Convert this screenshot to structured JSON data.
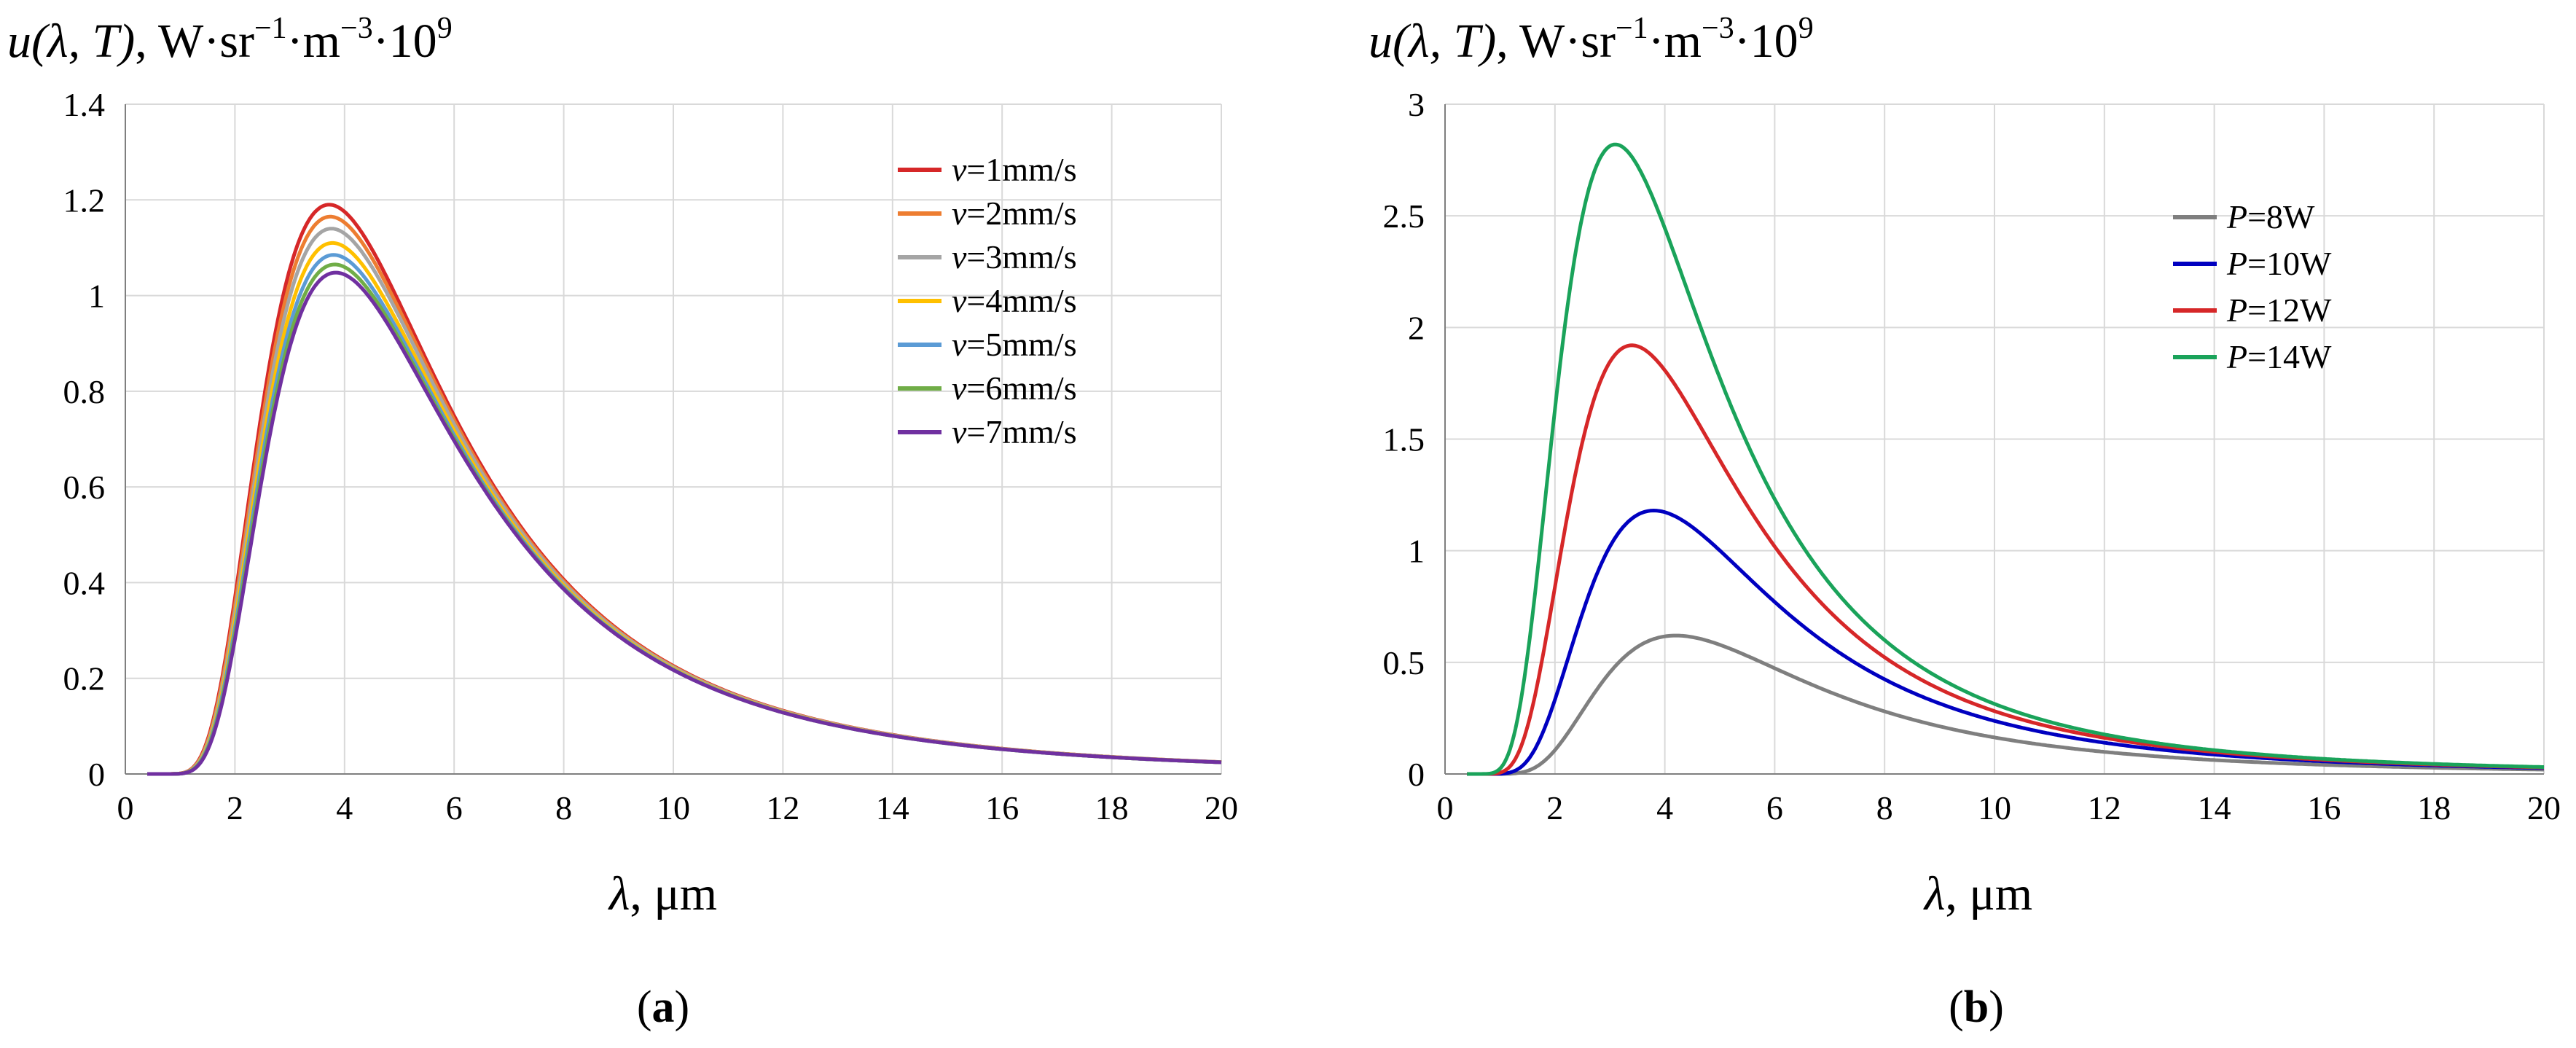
{
  "chart_data": [
    {
      "type": "line",
      "panel_label": "a",
      "ylabel": {
        "var": "u",
        "args": "(λ, T)",
        "units": ", W·sr",
        "e1": "−1",
        "mid": "·m",
        "e2": "−3",
        "tail": "·10",
        "e3": "9"
      },
      "xlabel": {
        "var": "λ",
        "units": ", μm"
      },
      "xlim": [
        0,
        20
      ],
      "ylim": [
        0,
        1.4
      ],
      "xticks": [
        0,
        2,
        4,
        6,
        8,
        10,
        12,
        14,
        16,
        18,
        20
      ],
      "yticks": [
        0,
        0.2,
        0.4,
        0.6,
        0.8,
        1,
        1.2,
        1.4
      ],
      "ytick_labels": [
        "0",
        "0.2",
        "0.4",
        "0.6",
        "0.8",
        "1",
        "1.2",
        "1.4"
      ],
      "x_start": 0.4,
      "legend_position": "top-right",
      "series": [
        {
          "name": "1mm/s",
          "var": "v",
          "eq": "=",
          "value_label": "1mm/s",
          "color": "#d62728",
          "peak_x": 3.72,
          "peak_y": 1.19
        },
        {
          "name": "2mm/s",
          "var": "v",
          "eq": "=",
          "value_label": "2mm/s",
          "color": "#ed7d31",
          "peak_x": 3.74,
          "peak_y": 1.165
        },
        {
          "name": "3mm/s",
          "var": "v",
          "eq": "=",
          "value_label": "3mm/s",
          "color": "#a5a5a5",
          "peak_x": 3.76,
          "peak_y": 1.14
        },
        {
          "name": "4mm/s",
          "var": "v",
          "eq": "=",
          "value_label": "4mm/s",
          "color": "#ffc000",
          "peak_x": 3.78,
          "peak_y": 1.11
        },
        {
          "name": "5mm/s",
          "var": "v",
          "eq": "=",
          "value_label": "5mm/s",
          "color": "#5b9bd5",
          "peak_x": 3.8,
          "peak_y": 1.085
        },
        {
          "name": "6mm/s",
          "var": "v",
          "eq": "=",
          "value_label": "6mm/s",
          "color": "#70ad47",
          "peak_x": 3.82,
          "peak_y": 1.065
        },
        {
          "name": "7mm/s",
          "var": "v",
          "eq": "=",
          "value_label": "7mm/s",
          "color": "#7030a0",
          "peak_x": 3.84,
          "peak_y": 1.048
        }
      ]
    },
    {
      "type": "line",
      "panel_label": "b",
      "ylabel": {
        "var": "u",
        "args": "(λ, T)",
        "units": ", W·sr",
        "e1": "−1",
        "mid": "·m",
        "e2": "−3",
        "tail": "·10",
        "e3": "9"
      },
      "xlabel": {
        "var": "λ",
        "units": ", μm"
      },
      "xlim": [
        0,
        20
      ],
      "ylim": [
        0,
        3
      ],
      "xticks": [
        0,
        2,
        4,
        6,
        8,
        10,
        12,
        14,
        16,
        18,
        20
      ],
      "yticks": [
        0,
        0.5,
        1,
        1.5,
        2,
        2.5,
        3
      ],
      "ytick_labels": [
        "0",
        "0.5",
        "1",
        "1.5",
        "2",
        "2.5",
        "3"
      ],
      "x_start": 0.4,
      "legend_position": "top-right",
      "series": [
        {
          "name": "8W",
          "var": "P",
          "eq": "=",
          "value_label": "8W",
          "color": "#7f7f7f",
          "peak_x": 4.2,
          "peak_y": 0.62
        },
        {
          "name": "10W",
          "var": "P",
          "eq": "=",
          "value_label": "10W",
          "color": "#0000c0",
          "peak_x": 3.8,
          "peak_y": 1.18
        },
        {
          "name": "12W",
          "var": "P",
          "eq": "=",
          "value_label": "12W",
          "color": "#d62728",
          "peak_x": 3.4,
          "peak_y": 1.92
        },
        {
          "name": "14W",
          "var": "P",
          "eq": "=",
          "value_label": "14W",
          "color": "#1aa35a",
          "peak_x": 3.1,
          "peak_y": 2.82
        }
      ]
    }
  ]
}
